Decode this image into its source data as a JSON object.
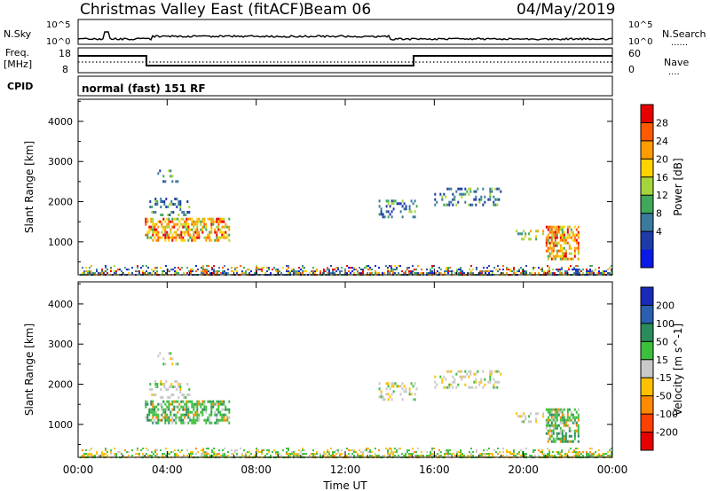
{
  "header": {
    "title": "Christmas Valley East (fitACF)",
    "beam": "Beam 06",
    "date": "04/May/2019"
  },
  "panels": {
    "nsky": {
      "left_label": "N.Sky",
      "left_ticks": [
        "10^5",
        "10^0"
      ],
      "right_ticks": [
        "10^5",
        "10^0"
      ],
      "right_label": "N.Search",
      "right_marker": "......"
    },
    "freq": {
      "left_label_1": "Freq.",
      "left_label_2": "[MHz]",
      "left_ticks": [
        "18",
        "8"
      ],
      "right_ticks": [
        "60",
        "0"
      ],
      "right_label": "Nave",
      "right_marker": "...."
    },
    "cpid": {
      "label": "CPID",
      "value": "normal (fast) 151 RF"
    }
  },
  "chart_data": [
    {
      "type": "heatmap",
      "name_shown": "Power",
      "ylabel": "Slant Range [km]",
      "y_ticks": [
        1000,
        2000,
        3000,
        4000
      ],
      "ylim": [
        180,
        4550
      ],
      "x_ticks": [
        "00:00",
        "04:00",
        "08:00",
        "12:00",
        "16:00",
        "20:00",
        "00:00"
      ],
      "xlim_hours": [
        0,
        24
      ],
      "colorbar": {
        "label": "Power [dB]",
        "ticks": [
          "28",
          "24",
          "20",
          "16",
          "12",
          "8",
          "4"
        ],
        "colors": [
          "#e60000",
          "#ff5a00",
          "#ff9c00",
          "#ffd200",
          "#a4d63c",
          "#40a85a",
          "#3a7a9c",
          "#1e3ca8",
          "#0a1ae6"
        ]
      },
      "echo_regions": [
        {
          "t0": 0.0,
          "t1": 24.0,
          "r0": 180,
          "r1": 420,
          "level": "mixed"
        },
        {
          "t0": 3.0,
          "t1": 6.8,
          "r0": 1050,
          "r1": 1600,
          "level": "high"
        },
        {
          "t0": 3.2,
          "t1": 5.0,
          "r0": 1700,
          "r1": 2100,
          "level": "low"
        },
        {
          "t0": 3.4,
          "t1": 4.5,
          "r0": 2500,
          "r1": 2800,
          "level": "low"
        },
        {
          "t0": 13.5,
          "t1": 15.2,
          "r0": 1600,
          "r1": 2050,
          "level": "low"
        },
        {
          "t0": 16.0,
          "t1": 19.0,
          "r0": 1900,
          "r1": 2350,
          "level": "low"
        },
        {
          "t0": 19.5,
          "t1": 21.0,
          "r0": 1100,
          "r1": 1300,
          "level": "mid"
        },
        {
          "t0": 21.0,
          "t1": 22.5,
          "r0": 600,
          "r1": 1400,
          "level": "high"
        }
      ]
    },
    {
      "type": "heatmap",
      "name_shown": "Velocity",
      "ylabel": "Slant Range [km]",
      "y_ticks": [
        1000,
        2000,
        3000,
        4000
      ],
      "ylim": [
        180,
        4550
      ],
      "x_ticks": [
        "00:00",
        "04:00",
        "08:00",
        "12:00",
        "16:00",
        "20:00",
        "00:00"
      ],
      "xlabel": "Time UT",
      "xlim_hours": [
        0,
        24
      ],
      "colorbar": {
        "label": "Velocity [m s^-1]",
        "ticks": [
          "200",
          "100",
          "50",
          "15",
          "-15",
          "-50",
          "-100",
          "-200"
        ],
        "colors": [
          "#1a2ab8",
          "#2b5fb0",
          "#2a8c5a",
          "#3cbf3c",
          "#c8c8c8",
          "#ffc000",
          "#ff8a00",
          "#ff4000",
          "#e60000"
        ]
      }
    }
  ],
  "colors": {
    "axis": "#000000",
    "background": "#ffffff"
  }
}
